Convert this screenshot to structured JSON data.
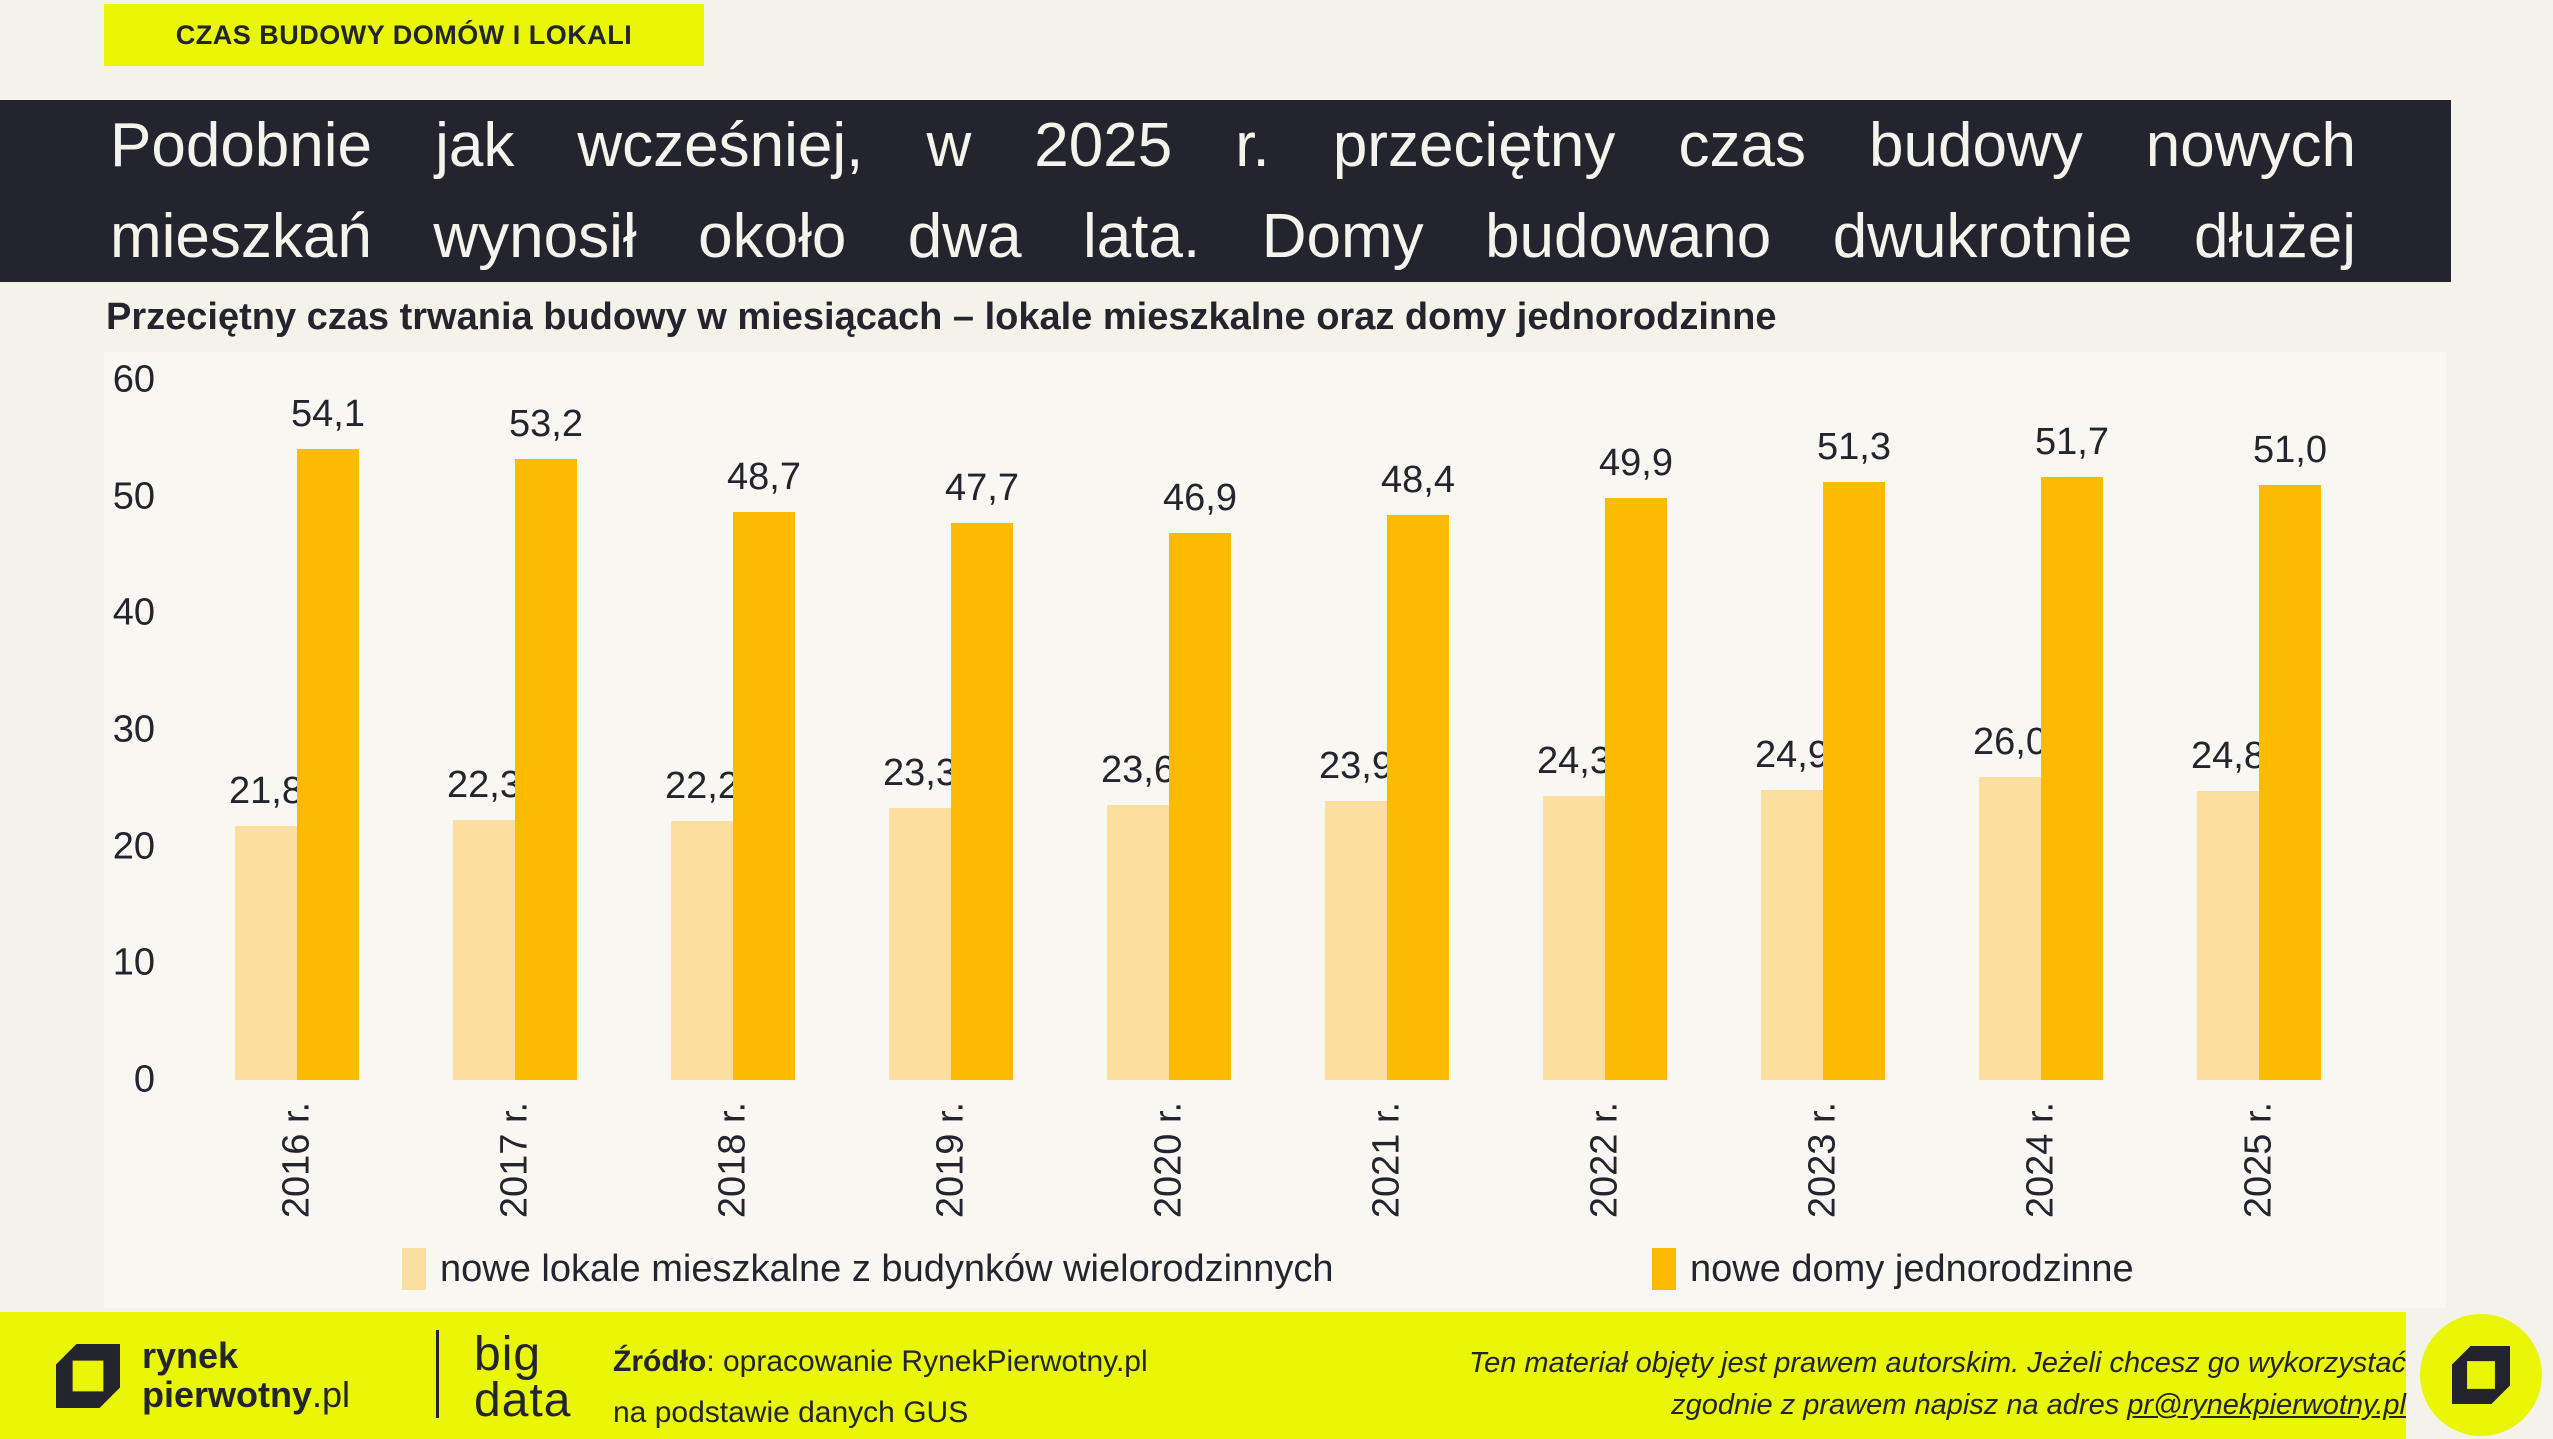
{
  "badge": {
    "label": "CZAS BUDOWY DOMÓW I LOKALI"
  },
  "headline": {
    "line1": "Podobnie jak wcześniej, w 2025 r. przeciętny czas budowy nowych",
    "line2": "mieszkań wynosił około dwa lata. Domy budowano dwukrotnie dłużej"
  },
  "chart_data": {
    "type": "bar",
    "title": "Przeciętny czas trwania budowy w miesiącach – lokale mieszkalne oraz domy jednorodzinne",
    "categories": [
      "2016 r.",
      "2017 r.",
      "2018 r.",
      "2019 r.",
      "2020 r.",
      "2021 r.",
      "2022 r.",
      "2023 r.",
      "2024 r.",
      "2025 r."
    ],
    "series": [
      {
        "name": "nowe lokale mieszkalne z budynków wielorodzinnych",
        "color_key": "lightOrange",
        "values": [
          21.8,
          22.3,
          22.2,
          23.3,
          23.6,
          23.9,
          24.3,
          24.9,
          26.0,
          24.8
        ],
        "labels": [
          "21,8",
          "22,3",
          "22,2",
          "23,3",
          "23,6",
          "23,9",
          "24,3",
          "24,9",
          "26,0",
          "24,8"
        ]
      },
      {
        "name": "nowe domy jednorodzinne",
        "color_key": "orange",
        "values": [
          54.1,
          53.2,
          48.7,
          47.7,
          46.9,
          48.4,
          49.9,
          51.3,
          51.7,
          51.0
        ],
        "labels": [
          "54,1",
          "53,2",
          "48,7",
          "47,7",
          "46,9",
          "48,4",
          "49,9",
          "51,3",
          "51,7",
          "51,0"
        ]
      }
    ],
    "ylim": [
      0,
      60
    ],
    "yticks": [
      0,
      10,
      20,
      30,
      40,
      50,
      60
    ],
    "grid": false,
    "legend_position": "bottom",
    "xlabel": "",
    "ylabel": ""
  },
  "footer": {
    "brand": {
      "line1": "rynek",
      "line2_bold": "pierwotny",
      "line2_suffix": ".pl"
    },
    "bigdata": {
      "line1": "big",
      "line2": "data"
    },
    "source": {
      "label": "Źródło",
      "rest": ": opracowanie RynekPierwotny.pl",
      "line2": "na podstawie danych GUS"
    },
    "copyright": {
      "line1": "Ten materiał objęty jest prawem autorskim. Jeżeli chcesz go wykorzystać",
      "line2_prefix": "zgodnie z prawem napisz na adres ",
      "email": "pr@rynekpierwotny.pl"
    }
  },
  "colors": {
    "cream": "#F4F3EA",
    "panel": "#F8F7F2",
    "lime": "#E9F605",
    "dark": "#23242E",
    "orange": "#FDBB00",
    "lightOrange": "#FCDE9E",
    "headlineText": "#F5F4EC"
  }
}
